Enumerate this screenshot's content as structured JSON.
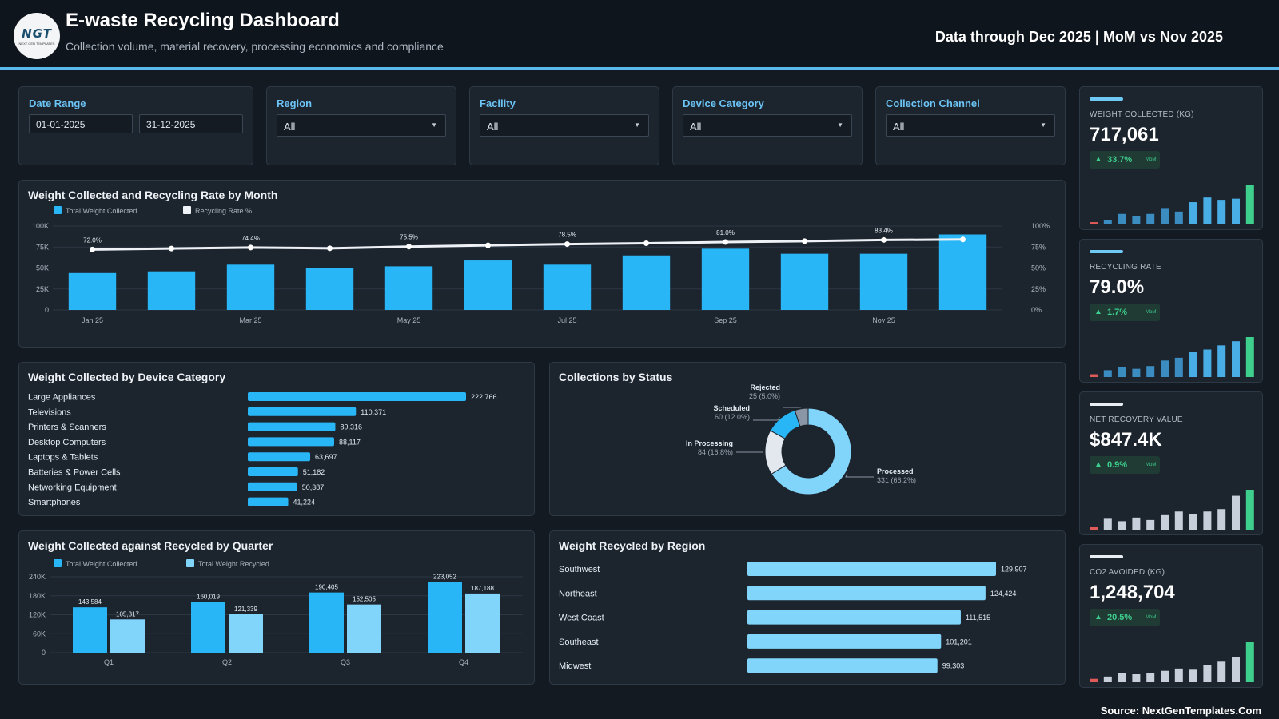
{
  "header": {
    "logo_text": "NGT",
    "logo_sub": "NEXT GEN TEMPLATES",
    "title": "E-waste Recycling Dashboard",
    "subtitle": "Collection volume, material recovery, processing economics and compliance",
    "as_of": "Data through Dec 2025 | MoM vs Nov 2025"
  },
  "filters": {
    "date_range": {
      "label": "Date Range",
      "start": "01-01-2025",
      "end": "31-12-2025"
    },
    "region": {
      "label": "Region",
      "value": "All"
    },
    "facility": {
      "label": "Facility",
      "value": "All"
    },
    "device_category": {
      "label": "Device Category",
      "value": "All"
    },
    "collection_channel": {
      "label": "Collection Channel",
      "value": "All"
    }
  },
  "colors": {
    "accent": "#29b6f6",
    "accent_light": "#81d4fa",
    "positive": "#3ecf8e",
    "negative": "#e05a5a",
    "background": "#141a22",
    "panel": "#1c242e"
  },
  "kpis": [
    {
      "label": "WEIGHT COLLECTED (KG)",
      "value": "717,061",
      "delta": "33.7%",
      "delta_note": "MoM",
      "accent": "#6ec9f5",
      "trend": [
        2,
        4,
        9,
        7,
        9,
        14,
        11,
        19,
        23,
        21,
        22,
        34
      ]
    },
    {
      "label": "RECYCLING RATE",
      "value": "79.0%",
      "delta": "1.7%",
      "delta_note": "MoM",
      "accent": "#6ec9f5",
      "trend": [
        2,
        5,
        7,
        6,
        8,
        12,
        14,
        18,
        20,
        23,
        26,
        29
      ]
    },
    {
      "label": "NET RECOVERY VALUE",
      "value": "$847.4K",
      "delta": "0.9%",
      "delta_note": "MoM",
      "accent": "#e8edf2",
      "trend": [
        2,
        9,
        7,
        10,
        8,
        12,
        15,
        13,
        15,
        17,
        28,
        33
      ]
    },
    {
      "label": "CO2 AVOIDED (KG)",
      "value": "1,248,704",
      "delta": "20.5%",
      "delta_note": "MoM",
      "accent": "#e8edf2",
      "trend": [
        3,
        5,
        8,
        7,
        8,
        10,
        12,
        11,
        15,
        18,
        22,
        35
      ]
    }
  ],
  "panels": {
    "monthly": "Weight Collected and Recycling Rate by Month",
    "device": "Weight Collected by Device Category",
    "status": "Collections by Status",
    "quarter": "Weight Collected against Recycled by Quarter",
    "region": "Weight Recycled by Region"
  },
  "chart_data": [
    {
      "type": "bar",
      "id": "monthly",
      "title": "Weight Collected and Recycling Rate by Month",
      "categories": [
        "Jan 25",
        "Feb 25",
        "Mar 25",
        "Apr 25",
        "May 25",
        "Jun 25",
        "Jul 25",
        "Aug 25",
        "Sep 25",
        "Oct 25",
        "Nov 25",
        "Dec 25"
      ],
      "x_tick_labels": [
        "Jan 25",
        "",
        "Mar 25",
        "",
        "May 25",
        "",
        "Jul 25",
        "",
        "Sep 25",
        "",
        "Nov 25",
        ""
      ],
      "series": [
        {
          "name": "Total Weight Collected",
          "kind": "bar",
          "axis": "left",
          "values": [
            44000,
            46000,
            54000,
            50000,
            52000,
            59000,
            54000,
            65000,
            73000,
            67000,
            67000,
            90000
          ]
        },
        {
          "name": "Recycling Rate %",
          "kind": "line",
          "axis": "right",
          "values": [
            72.0,
            73.2,
            74.4,
            73.5,
            75.5,
            77.0,
            78.5,
            79.5,
            81.0,
            82.0,
            83.4,
            84.0
          ]
        }
      ],
      "data_labels": [
        "72.0%",
        "",
        "74.4%",
        "",
        "75.5%",
        "",
        "78.5%",
        "",
        "81.0%",
        "",
        "83.4%",
        ""
      ],
      "y_left": {
        "ticks": [
          "0",
          "25K",
          "50K",
          "75K",
          "100K"
        ],
        "ylim": [
          0,
          100000
        ]
      },
      "y_right": {
        "ticks": [
          "0%",
          "25%",
          "50%",
          "75%",
          "100%"
        ],
        "ylim": [
          0,
          100
        ]
      },
      "grid": true,
      "legend": "top-left"
    },
    {
      "type": "bar",
      "id": "device",
      "orientation": "horizontal",
      "title": "Weight Collected by Device Category",
      "categories": [
        "Large Appliances",
        "Televisions",
        "Printers & Scanners",
        "Desktop Computers",
        "Laptops & Tablets",
        "Batteries & Power Cells",
        "Networking Equipment",
        "Smartphones"
      ],
      "values": [
        222766,
        110371,
        89316,
        88117,
        63697,
        51182,
        50387,
        41224
      ],
      "value_labels": [
        "222,766",
        "110,371",
        "89,316",
        "88,117",
        "63,697",
        "51,182",
        "50,387",
        "41,224"
      ]
    },
    {
      "type": "pie",
      "id": "status",
      "title": "Collections by Status",
      "donut": true,
      "slices": [
        {
          "name": "Processed",
          "value": 331,
          "label": "331 (66.2%)",
          "color": "#81d4fa"
        },
        {
          "name": "In Processing",
          "value": 84,
          "label": "84 (16.8%)",
          "color": "#e3e8ef"
        },
        {
          "name": "Scheduled",
          "value": 60,
          "label": "60 (12.0%)",
          "color": "#29b6f6"
        },
        {
          "name": "Rejected",
          "value": 25,
          "label": "25 (5.0%)",
          "color": "#8a96a5"
        }
      ]
    },
    {
      "type": "bar",
      "id": "quarter",
      "title": "Weight Collected against Recycled by Quarter",
      "categories": [
        "Q1",
        "Q2",
        "Q3",
        "Q4"
      ],
      "series": [
        {
          "name": "Total Weight Collected",
          "values": [
            143584,
            160019,
            190405,
            223052
          ],
          "labels": [
            "143,584",
            "160,019",
            "190,405",
            "223,052"
          ]
        },
        {
          "name": "Total Weight Recycled",
          "values": [
            105317,
            121339,
            152505,
            187188
          ],
          "labels": [
            "105,317",
            "121,339",
            "152,505",
            "187,188"
          ]
        }
      ],
      "y_ticks": [
        "0",
        "60K",
        "120K",
        "180K",
        "240K"
      ],
      "ylim": [
        0,
        240000
      ],
      "grid": true,
      "legend": "top-left"
    },
    {
      "type": "bar",
      "id": "region",
      "orientation": "horizontal",
      "title": "Weight Recycled by Region",
      "categories": [
        "Southwest",
        "Northeast",
        "West Coast",
        "Southeast",
        "Midwest"
      ],
      "values": [
        129907,
        124424,
        111515,
        101201,
        99303
      ],
      "value_labels": [
        "129,907",
        "124,424",
        "111,515",
        "101,201",
        "99,303"
      ]
    }
  ],
  "footer": {
    "source": "Source: NextGenTemplates.Com"
  }
}
